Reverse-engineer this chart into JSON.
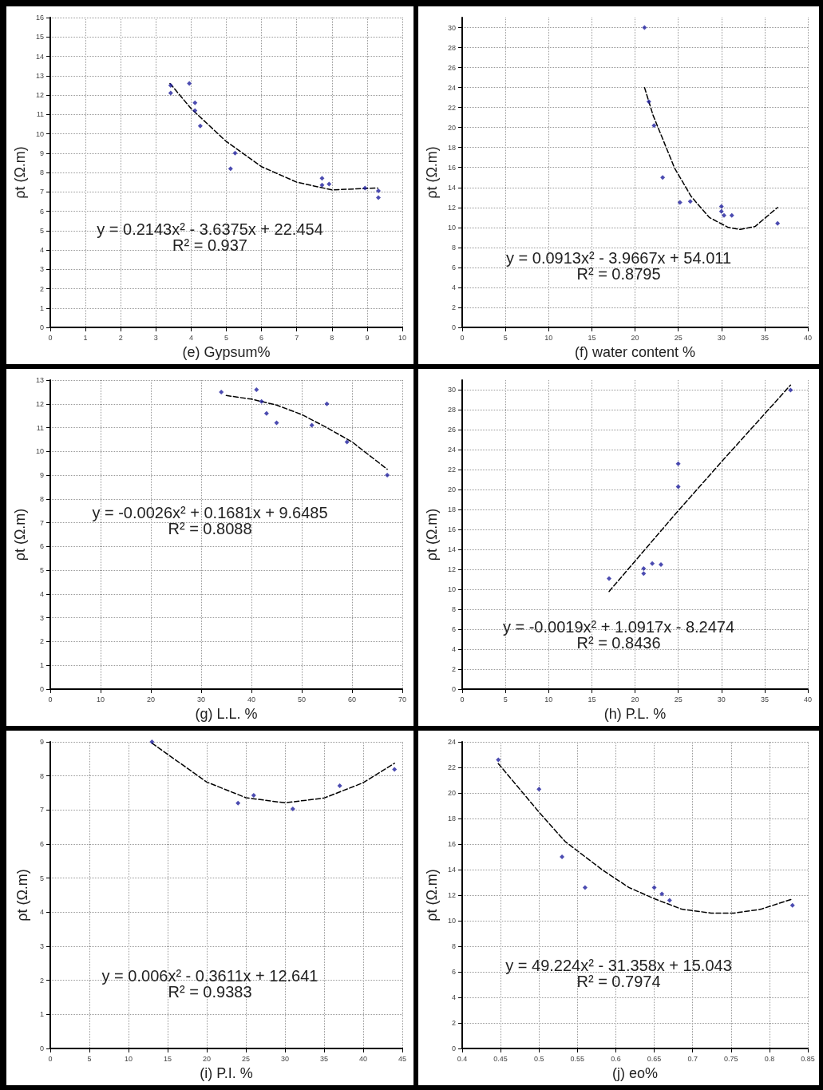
{
  "chart_data": [
    {
      "type": "scatter",
      "xlabel": "(e) Gypsum%",
      "ylabel": "ρt (Ω.m)",
      "xlim": [
        0,
        10
      ],
      "xticks": [
        0,
        1,
        2,
        3,
        4,
        5,
        6,
        7,
        8,
        9,
        10
      ],
      "ylim": [
        0,
        16
      ],
      "yticks": [
        0,
        1,
        2,
        3,
        4,
        5,
        6,
        7,
        8,
        9,
        10,
        11,
        12,
        13,
        14,
        15,
        16
      ],
      "grid": true,
      "annotations": [
        "y = 0.2143x² - 3.6375x + 22.454",
        "R² = 0.937"
      ],
      "series": [
        {
          "type": "scatter",
          "marker": "diamond",
          "color": "#1f1f9e",
          "x": [
            3.42,
            3.42,
            3.95,
            4.11,
            4.11,
            4.26,
            5.12,
            5.25,
            7.72,
            7.72,
            7.92,
            8.94,
            9.32,
            9.32
          ],
          "values": [
            12.5,
            12.1,
            12.6,
            11.6,
            11.2,
            10.4,
            8.2,
            9.0,
            7.7,
            7.35,
            7.4,
            7.2,
            7.05,
            6.7
          ]
        },
        {
          "type": "line",
          "marker": "none",
          "color": "#000000",
          "line_style": "dashed",
          "x": [
            3.4,
            4,
            5,
            6,
            7,
            8,
            9.3
          ],
          "values": [
            12.6,
            11.3,
            9.6,
            8.3,
            7.5,
            7.1,
            7.2
          ]
        }
      ]
    },
    {
      "type": "scatter",
      "xlabel": "(f) water content %",
      "ylabel": "ρt (Ω.m)",
      "xlim": [
        0,
        40
      ],
      "xticks": [
        0,
        5,
        10,
        15,
        20,
        25,
        30,
        35,
        40
      ],
      "ylim": [
        0,
        31
      ],
      "yticks": [
        0,
        2,
        4,
        6,
        8,
        10,
        12,
        14,
        16,
        18,
        20,
        22,
        24,
        26,
        28,
        30
      ],
      "grid": true,
      "annotations": [
        "y = 0.0913x² - 3.9667x + 54.011",
        "R² = 0.8795"
      ],
      "series": [
        {
          "type": "scatter",
          "marker": "diamond",
          "color": "#1f1f9e",
          "x": [
            21.1,
            21.6,
            22.2,
            23.2,
            25.2,
            26.4,
            30.0,
            30.0,
            30.3,
            31.2,
            36.5
          ],
          "values": [
            30,
            22.6,
            20.2,
            15,
            12.5,
            12.6,
            12.1,
            11.6,
            11.2,
            11.2,
            10.4
          ]
        },
        {
          "type": "line",
          "marker": "none",
          "color": "#000000",
          "line_style": "dashed",
          "x": [
            21.1,
            22.1,
            24.6,
            26.5,
            28.6,
            30.8,
            32.2,
            33.9,
            36.5
          ],
          "values": [
            24,
            21.2,
            15.9,
            13.1,
            11.0,
            10.0,
            9.8,
            10.1,
            12.0
          ]
        }
      ]
    },
    {
      "type": "scatter",
      "xlabel": "(g) L.L. %",
      "ylabel": "ρt (Ω.m)",
      "xlim": [
        0,
        70
      ],
      "xticks": [
        0,
        10,
        20,
        30,
        40,
        50,
        60,
        70
      ],
      "ylim": [
        0,
        13
      ],
      "yticks": [
        0,
        1,
        2,
        3,
        4,
        5,
        6,
        7,
        8,
        9,
        10,
        11,
        12,
        13
      ],
      "grid": true,
      "annotations": [
        "y = -0.0026x² + 0.1681x + 9.6485",
        "R² = 0.8088"
      ],
      "series": [
        {
          "type": "scatter",
          "marker": "diamond",
          "color": "#1f1f9e",
          "x": [
            34,
            41,
            42,
            43,
            45,
            52,
            55,
            59,
            67
          ],
          "values": [
            12.5,
            12.6,
            12.1,
            11.6,
            11.2,
            11.1,
            12.0,
            10.4,
            9.0
          ]
        },
        {
          "type": "line",
          "marker": "none",
          "color": "#000000",
          "line_style": "dashed",
          "x": [
            35,
            40,
            45,
            50,
            55,
            60,
            67
          ],
          "values": [
            12.35,
            12.2,
            11.95,
            11.55,
            11.0,
            10.4,
            9.25
          ]
        }
      ]
    },
    {
      "type": "scatter",
      "xlabel": "(h) P.L. %",
      "ylabel": "ρt (Ω.m)",
      "xlim": [
        0,
        40
      ],
      "xticks": [
        0,
        5,
        10,
        15,
        20,
        25,
        30,
        35,
        40
      ],
      "ylim": [
        0,
        31
      ],
      "yticks": [
        0,
        2,
        4,
        6,
        8,
        10,
        12,
        14,
        16,
        18,
        20,
        22,
        24,
        26,
        28,
        30
      ],
      "grid": true,
      "annotations": [
        "y = -0.0019x² + 1.0917x - 8.2474",
        "R² = 0.8436"
      ],
      "series": [
        {
          "type": "scatter",
          "marker": "diamond",
          "color": "#1f1f9e",
          "x": [
            17,
            21,
            21,
            22,
            23,
            25,
            25,
            38
          ],
          "values": [
            11.1,
            12.1,
            11.6,
            12.6,
            12.5,
            22.6,
            20.3,
            30
          ]
        },
        {
          "type": "line",
          "marker": "none",
          "color": "#000000",
          "line_style": "dashed",
          "x": [
            17,
            25,
            30,
            38
          ],
          "values": [
            9.8,
            17.9,
            22.8,
            30.5
          ]
        }
      ]
    },
    {
      "type": "scatter",
      "xlabel": "(i) P.I. %",
      "ylabel": "ρt (Ω.m)",
      "xlim": [
        0,
        45
      ],
      "xticks": [
        0,
        5,
        10,
        15,
        20,
        25,
        30,
        35,
        40,
        45
      ],
      "ylim": [
        0,
        9
      ],
      "yticks": [
        0,
        1,
        2,
        3,
        4,
        5,
        6,
        7,
        8,
        9
      ],
      "grid": true,
      "annotations": [
        "y = 0.006x² - 0.3611x + 12.641",
        "R² = 0.9383"
      ],
      "series": [
        {
          "type": "scatter",
          "marker": "diamond",
          "color": "#1f1f9e",
          "x": [
            13,
            24,
            26,
            31,
            37,
            44
          ],
          "values": [
            9,
            7.2,
            7.43,
            7.03,
            7.71,
            8.19
          ]
        },
        {
          "type": "line",
          "marker": "none",
          "color": "#000000",
          "line_style": "dashed",
          "x": [
            13,
            20,
            25,
            30,
            35,
            40,
            44
          ],
          "values": [
            8.96,
            7.82,
            7.36,
            7.21,
            7.35,
            7.8,
            8.37
          ]
        }
      ]
    },
    {
      "type": "scatter",
      "xlabel": "(j) eo%",
      "ylabel": "ρt (Ω.m)",
      "xlim": [
        0.4,
        0.85
      ],
      "xticks": [
        0.4,
        0.45,
        0.5,
        0.55,
        0.6,
        0.65,
        0.7,
        0.75,
        0.8,
        0.85
      ],
      "ylim": [
        0,
        24
      ],
      "yticks": [
        0,
        2,
        4,
        6,
        8,
        10,
        12,
        14,
        16,
        18,
        20,
        22,
        24
      ],
      "grid": true,
      "annotations": [
        "y = 49.224x² - 31.358x + 15.043",
        "R² = 0.7974"
      ],
      "series": [
        {
          "type": "scatter",
          "marker": "diamond",
          "color": "#1f1f9e",
          "x": [
            0.447,
            0.5,
            0.53,
            0.56,
            0.65,
            0.66,
            0.67,
            0.83
          ],
          "values": [
            22.6,
            20.3,
            15.0,
            12.6,
            12.6,
            12.1,
            11.6,
            11.2
          ]
        },
        {
          "type": "line",
          "marker": "none",
          "color": "#000000",
          "line_style": "dashed",
          "x": [
            0.447,
            0.5,
            0.534,
            0.582,
            0.617,
            0.651,
            0.686,
            0.724,
            0.754,
            0.789,
            0.83
          ],
          "values": [
            22.3,
            18.5,
            16.2,
            14.0,
            12.6,
            11.7,
            10.9,
            10.6,
            10.6,
            10.9,
            11.7
          ]
        }
      ]
    }
  ]
}
